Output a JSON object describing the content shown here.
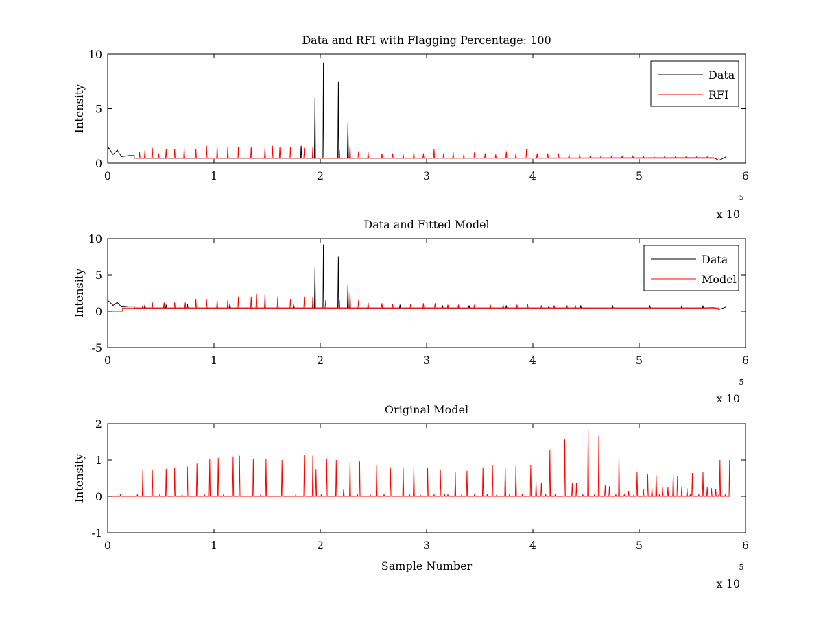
{
  "chart_data": [
    {
      "type": "line",
      "title": "Data and RFI with Flagging Percentage: 100",
      "xlabel": "",
      "ylabel": "Intensity",
      "xlim": [
        0,
        600000
      ],
      "ylim": [
        0,
        10
      ],
      "x_ticks": [
        "0",
        "1",
        "2",
        "3",
        "4",
        "5",
        "6"
      ],
      "y_ticks": [
        "0",
        "5",
        "10"
      ],
      "x_multiplier": "x 10",
      "x_exponent": "5",
      "grid": false,
      "legend_position": "top-right",
      "series": [
        {
          "name": "Data",
          "color": "#000000",
          "baseline": 0.45,
          "peaks": [
            [
              3000,
              1.3
            ],
            [
              8000,
              1.2
            ],
            [
              195000,
              6.0
            ],
            [
              203000,
              9.2
            ],
            [
              217000,
              7.5
            ],
            [
              226000,
              3.7
            ],
            [
              182000,
              1.6
            ]
          ],
          "gaps": [
            [
              0,
              1.1
            ],
            [
              1000,
              1.4
            ],
            [
              5000,
              0.8
            ],
            [
              9000,
              1.2
            ],
            [
              13000,
              0.6
            ],
            [
              20000,
              0.7
            ],
            [
              25000,
              0.7
            ],
            [
              570000,
              0.5
            ],
            [
              575000,
              0.25
            ],
            [
              580000,
              0.5
            ],
            [
              582000,
              0.6
            ]
          ]
        },
        {
          "name": "RFI",
          "color": "#ff0000",
          "x_range": [
            27000,
            575000
          ],
          "baseline": 0.45,
          "peaks": [
            [
              30000,
              1.0
            ],
            [
              35000,
              1.2
            ],
            [
              42000,
              1.4
            ],
            [
              48000,
              0.9
            ],
            [
              55000,
              1.3
            ],
            [
              63000,
              1.3
            ],
            [
              72000,
              1.3
            ],
            [
              83000,
              1.3
            ],
            [
              93000,
              1.6
            ],
            [
              103000,
              1.6
            ],
            [
              113000,
              1.5
            ],
            [
              123000,
              1.5
            ],
            [
              135000,
              1.5
            ],
            [
              148000,
              1.4
            ],
            [
              155000,
              1.6
            ],
            [
              162000,
              1.5
            ],
            [
              172000,
              1.5
            ],
            [
              185000,
              1.4
            ],
            [
              193000,
              1.5
            ],
            [
              218000,
              1.2
            ],
            [
              228000,
              1.7
            ],
            [
              236000,
              1.1
            ],
            [
              245000,
              1.0
            ],
            [
              258000,
              0.9
            ],
            [
              268000,
              0.9
            ],
            [
              278000,
              0.8
            ],
            [
              288000,
              1.0
            ],
            [
              297000,
              0.9
            ],
            [
              307000,
              1.3
            ],
            [
              316000,
              0.9
            ],
            [
              325000,
              1.0
            ],
            [
              335000,
              0.8
            ],
            [
              345000,
              1.0
            ],
            [
              355000,
              0.9
            ],
            [
              365000,
              0.8
            ],
            [
              375000,
              1.1
            ],
            [
              384000,
              0.9
            ],
            [
              394000,
              1.3
            ],
            [
              404000,
              0.9
            ],
            [
              414000,
              0.9
            ],
            [
              424000,
              0.9
            ],
            [
              434000,
              0.8
            ],
            [
              444000,
              0.8
            ],
            [
              454000,
              0.7
            ],
            [
              464000,
              0.7
            ],
            [
              474000,
              0.7
            ],
            [
              484000,
              0.7
            ],
            [
              494000,
              0.7
            ],
            [
              504000,
              0.7
            ],
            [
              514000,
              0.6
            ],
            [
              524000,
              0.7
            ],
            [
              534000,
              0.6
            ],
            [
              544000,
              0.6
            ],
            [
              554000,
              0.6
            ],
            [
              564000,
              0.6
            ]
          ]
        }
      ]
    },
    {
      "type": "line",
      "title": "Data and Fitted Model",
      "xlabel": "",
      "ylabel": "Intensity",
      "xlim": [
        0,
        600000
      ],
      "ylim": [
        -5,
        10
      ],
      "x_ticks": [
        "0",
        "1",
        "2",
        "3",
        "4",
        "5",
        "6"
      ],
      "y_ticks": [
        "-5",
        "0",
        "5",
        "10"
      ],
      "x_multiplier": "x 10",
      "x_exponent": "5",
      "grid": false,
      "legend_position": "top-right",
      "series": [
        {
          "name": "Data",
          "color": "#000000",
          "baseline": 0.45,
          "peaks": [
            [
              3000,
              1.3
            ],
            [
              8000,
              1.2
            ],
            [
              195000,
              6.0
            ],
            [
              203000,
              9.2
            ],
            [
              217000,
              7.5
            ],
            [
              226000,
              3.7
            ],
            [
              35000,
              0.9
            ],
            [
              55000,
              0.9
            ],
            [
              75000,
              1.0
            ],
            [
              115000,
              1.1
            ],
            [
              175000,
              1.0
            ],
            [
              275000,
              0.9
            ],
            [
              315000,
              0.8
            ],
            [
              340000,
              0.8
            ],
            [
              375000,
              0.8
            ],
            [
              415000,
              0.7
            ],
            [
              445000,
              0.8
            ],
            [
              475000,
              0.8
            ],
            [
              510000,
              0.8
            ],
            [
              540000,
              0.7
            ],
            [
              560000,
              0.7
            ]
          ],
          "gaps": [
            [
              0,
              1.1
            ],
            [
              1000,
              1.4
            ],
            [
              5000,
              0.8
            ],
            [
              9000,
              1.2
            ],
            [
              13000,
              0.6
            ],
            [
              20000,
              0.7
            ],
            [
              25000,
              0.7
            ],
            [
              570000,
              0.5
            ],
            [
              575000,
              0.25
            ],
            [
              580000,
              0.5
            ],
            [
              582000,
              0.6
            ]
          ]
        },
        {
          "name": "Model",
          "color": "#ff0000",
          "x_range": [
            0,
            575000
          ],
          "step": [
            [
              0,
              0.0
            ],
            [
              14000,
              0.0
            ],
            [
              14000,
              0.4
            ]
          ],
          "baseline": 0.45,
          "peaks": [
            [
              33000,
              0.8
            ],
            [
              42000,
              1.3
            ],
            [
              53000,
              1.2
            ],
            [
              63000,
              1.2
            ],
            [
              73000,
              1.2
            ],
            [
              83000,
              1.7
            ],
            [
              93000,
              1.7
            ],
            [
              103000,
              1.6
            ],
            [
              113000,
              1.6
            ],
            [
              123000,
              2.0
            ],
            [
              135000,
              2.0
            ],
            [
              140000,
              2.4
            ],
            [
              148000,
              2.4
            ],
            [
              160000,
              2.0
            ],
            [
              172000,
              1.7
            ],
            [
              185000,
              2.0
            ],
            [
              193000,
              2.0
            ],
            [
              205000,
              1.5
            ],
            [
              218000,
              1.6
            ],
            [
              228000,
              2.7
            ],
            [
              236000,
              1.5
            ],
            [
              245000,
              1.2
            ],
            [
              258000,
              1.1
            ],
            [
              268000,
              1.0
            ],
            [
              285000,
              1.0
            ],
            [
              297000,
              1.1
            ],
            [
              308000,
              1.1
            ],
            [
              320000,
              0.9
            ],
            [
              330000,
              0.9
            ],
            [
              345000,
              0.9
            ],
            [
              360000,
              0.9
            ],
            [
              372000,
              0.9
            ],
            [
              385000,
              0.9
            ],
            [
              395000,
              1.0
            ],
            [
              408000,
              0.8
            ],
            [
              420000,
              0.8
            ],
            [
              432000,
              0.8
            ],
            [
              440000,
              0.8
            ]
          ]
        }
      ]
    },
    {
      "type": "line",
      "title": "Original Model",
      "xlabel": "Sample Number",
      "ylabel": "Intensity",
      "xlim": [
        0,
        600000
      ],
      "ylim": [
        -1,
        2
      ],
      "x_ticks": [
        "0",
        "1",
        "2",
        "3",
        "4",
        "5",
        "6"
      ],
      "y_ticks": [
        "-1",
        "0",
        "1",
        "2"
      ],
      "x_multiplier": "x 10",
      "x_exponent": "5",
      "grid": false,
      "series": [
        {
          "name": "",
          "color": "#ff0000",
          "x_range": [
            0,
            582000
          ],
          "baseline": 0.0,
          "peaks": [
            [
              12000,
              0.05
            ],
            [
              28000,
              0.05
            ],
            [
              33000,
              0.72
            ],
            [
              42000,
              0.74
            ],
            [
              49000,
              0.05
            ],
            [
              55000,
              0.76
            ],
            [
              63000,
              0.78
            ],
            [
              70000,
              0.05
            ],
            [
              75000,
              0.82
            ],
            [
              84000,
              0.9
            ],
            [
              91000,
              0.05
            ],
            [
              96000,
              1.02
            ],
            [
              104000,
              1.06
            ],
            [
              109000,
              0.05
            ],
            [
              118000,
              1.1
            ],
            [
              124000,
              1.12
            ],
            [
              137000,
              1.04
            ],
            [
              144000,
              0.05
            ],
            [
              149000,
              1.02
            ],
            [
              164000,
              1.0
            ],
            [
              177000,
              0.05
            ],
            [
              185000,
              1.14
            ],
            [
              193000,
              1.12
            ],
            [
              196000,
              0.75
            ],
            [
              201000,
              0.05
            ],
            [
              206000,
              1.04
            ],
            [
              215000,
              1.0
            ],
            [
              222000,
              0.2
            ],
            [
              228000,
              0.98
            ],
            [
              235000,
              0.05
            ],
            [
              237000,
              0.96
            ],
            [
              247000,
              0.05
            ],
            [
              253000,
              0.86
            ],
            [
              260000,
              0.05
            ],
            [
              266000,
              0.8
            ],
            [
              278000,
              0.8
            ],
            [
              284000,
              0.05
            ],
            [
              288000,
              0.8
            ],
            [
              294000,
              0.05
            ],
            [
              301000,
              0.78
            ],
            [
              307000,
              0.05
            ],
            [
              313000,
              0.74
            ],
            [
              317000,
              0.05
            ],
            [
              320000,
              0.05
            ],
            [
              327000,
              0.66
            ],
            [
              333000,
              0.05
            ],
            [
              338000,
              0.7
            ],
            [
              345000,
              0.05
            ],
            [
              353000,
              0.8
            ],
            [
              357000,
              0.05
            ],
            [
              362000,
              0.86
            ],
            [
              366000,
              0.05
            ],
            [
              374000,
              0.8
            ],
            [
              378000,
              0.05
            ],
            [
              384000,
              0.84
            ],
            [
              390000,
              0.05
            ],
            [
              398000,
              0.86
            ],
            [
              403000,
              0.36
            ],
            [
              408000,
              0.38
            ],
            [
              412000,
              0.05
            ],
            [
              416000,
              1.28
            ],
            [
              421000,
              0.05
            ],
            [
              430000,
              1.56
            ],
            [
              437000,
              0.36
            ],
            [
              441000,
              0.36
            ],
            [
              447000,
              0.05
            ],
            [
              452000,
              1.86
            ],
            [
              458000,
              0.05
            ],
            [
              462000,
              1.66
            ],
            [
              468000,
              0.3
            ],
            [
              472000,
              0.28
            ],
            [
              478000,
              0.05
            ],
            [
              481000,
              1.12
            ],
            [
              486000,
              0.05
            ],
            [
              490000,
              0.15
            ],
            [
              495000,
              0.05
            ],
            [
              498000,
              0.66
            ],
            [
              504000,
              0.2
            ],
            [
              508000,
              0.6
            ],
            [
              512000,
              0.22
            ],
            [
              516000,
              0.58
            ],
            [
              519000,
              0.05
            ],
            [
              522000,
              0.25
            ],
            [
              527000,
              0.25
            ],
            [
              532000,
              0.6
            ],
            [
              536000,
              0.55
            ],
            [
              540000,
              0.25
            ],
            [
              545000,
              0.22
            ],
            [
              548000,
              0.05
            ],
            [
              550000,
              0.64
            ],
            [
              556000,
              0.05
            ],
            [
              560000,
              0.66
            ],
            [
              564000,
              0.25
            ],
            [
              568000,
              0.22
            ],
            [
              572000,
              0.2
            ],
            [
              575000,
              0.05
            ],
            [
              576000,
              1.0
            ],
            [
              581000,
              0.05
            ],
            [
              585000,
              1.0
            ]
          ]
        }
      ]
    }
  ],
  "colors": {
    "data": "#000000",
    "rfi": "#ff0000",
    "axes": "#000000",
    "background": "#ffffff"
  }
}
